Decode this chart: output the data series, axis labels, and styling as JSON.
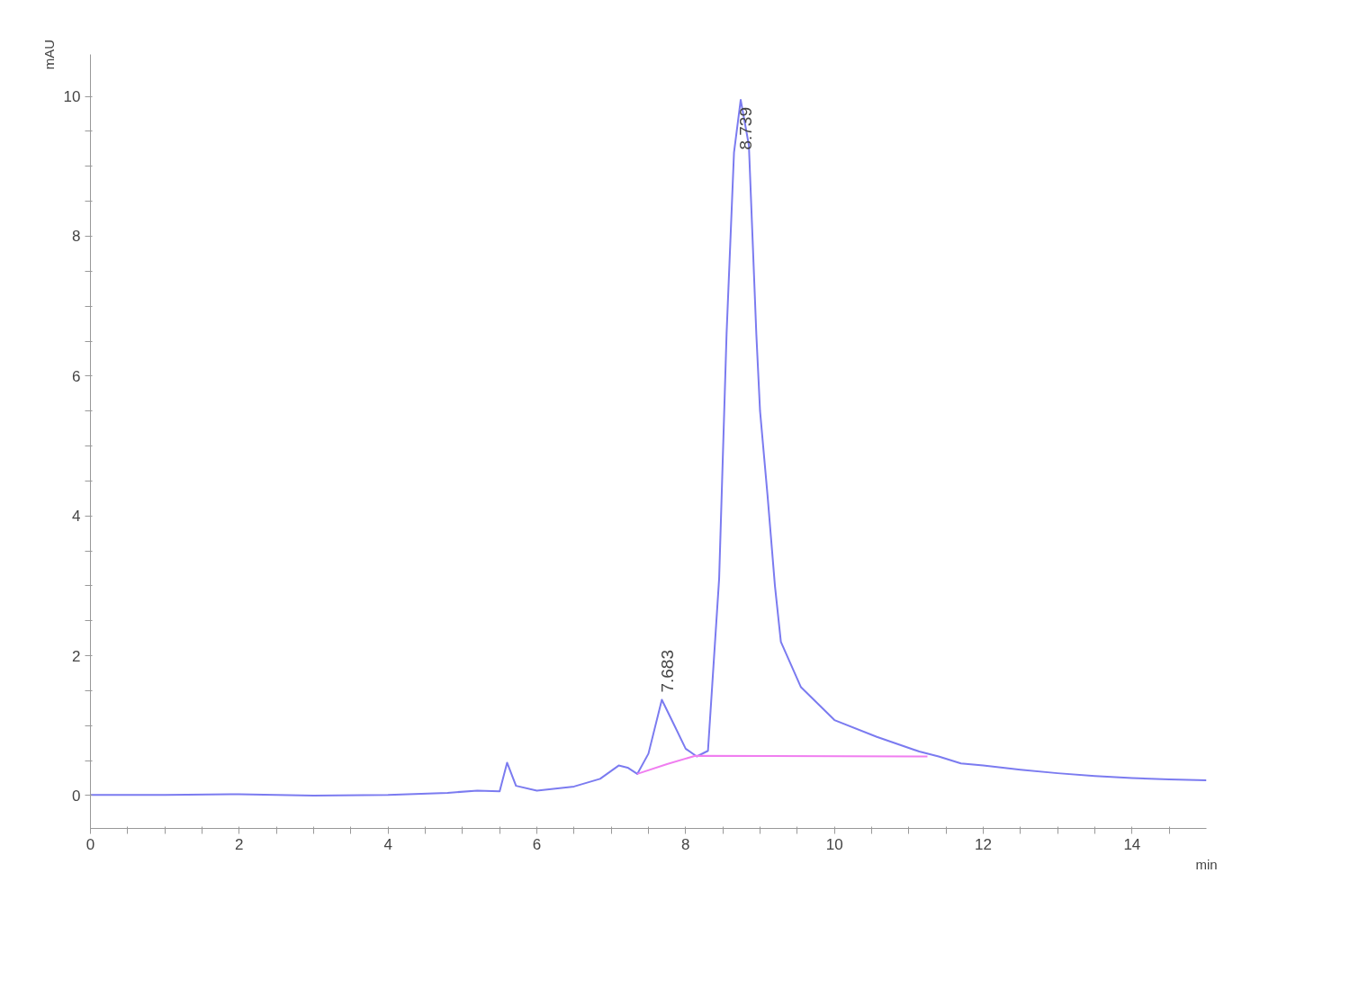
{
  "chart_data": {
    "type": "line",
    "xlabel": "min",
    "ylabel": "mAU",
    "xlim": [
      0,
      15
    ],
    "ylim": [
      -0.47,
      10.6
    ],
    "xticks": [
      0,
      {
        "value": 0.5,
        "label": null
      },
      {
        "value": 1,
        "label": null
      },
      {
        "value": 1.5,
        "label": null
      },
      2,
      {
        "value": 2.5,
        "label": null
      },
      {
        "value": 3,
        "label": null
      },
      {
        "value": 3.5,
        "label": null
      },
      4,
      {
        "value": 4.5,
        "label": null
      },
      {
        "value": 5,
        "label": null
      },
      {
        "value": 5.5,
        "label": null
      },
      6,
      {
        "value": 6.5,
        "label": null
      },
      {
        "value": 7,
        "label": null
      },
      {
        "value": 7.5,
        "label": null
      },
      8,
      {
        "value": 8.5,
        "label": null
      },
      {
        "value": 9,
        "label": null
      },
      {
        "value": 9.5,
        "label": null
      },
      10,
      {
        "value": 10.5,
        "label": null
      },
      {
        "value": 11,
        "label": null
      },
      {
        "value": 11.5,
        "label": null
      },
      12,
      {
        "value": 12.5,
        "label": null
      },
      {
        "value": 13,
        "label": null
      },
      {
        "value": 13.5,
        "label": null
      },
      14,
      {
        "value": 14.5,
        "label": null
      }
    ],
    "yticks": [
      0,
      {
        "value": 0.5,
        "label": null
      },
      {
        "value": 1,
        "label": null
      },
      {
        "value": 1.5,
        "label": null
      },
      2,
      {
        "value": 2.5,
        "label": null
      },
      {
        "value": 3,
        "label": null
      },
      {
        "value": 3.5,
        "label": null
      },
      4,
      {
        "value": 4.5,
        "label": null
      },
      {
        "value": 5,
        "label": null
      },
      {
        "value": 5.5,
        "label": null
      },
      6,
      {
        "value": 6.5,
        "label": null
      },
      {
        "value": 7,
        "label": null
      },
      {
        "value": 7.5,
        "label": null
      },
      8,
      {
        "value": 8.5,
        "label": null
      },
      {
        "value": 9,
        "label": null
      },
      {
        "value": 9.5,
        "label": null
      },
      10
    ],
    "grid": false,
    "marker": "none",
    "line_style": "solid",
    "series": [
      {
        "color": "#7b7bf0",
        "x": [
          0,
          1,
          2,
          3,
          4,
          4.8,
          5.2,
          5.5,
          5.6,
          5.72,
          6.0,
          6.5,
          6.85,
          7.1,
          7.22,
          7.35,
          7.5,
          7.68,
          7.85,
          8.0,
          8.15,
          8.3,
          8.45,
          8.55,
          8.65,
          8.74,
          8.85,
          8.95,
          9.0,
          9.1,
          9.2,
          9.28,
          9.55,
          10.0,
          10.57,
          11.14,
          11.4,
          11.7,
          12.0,
          12.5,
          13.0,
          13.5,
          14.0,
          14.5,
          15.0
        ],
        "values": [
          0.01,
          0.01,
          0.02,
          0.0,
          0.01,
          0.04,
          0.07,
          0.06,
          0.47,
          0.14,
          0.07,
          0.13,
          0.24,
          0.43,
          0.4,
          0.31,
          0.6,
          1.37,
          1.0,
          0.67,
          0.56,
          0.64,
          3.1,
          6.6,
          9.2,
          9.95,
          9.3,
          6.6,
          5.5,
          4.3,
          3.0,
          2.2,
          1.55,
          1.08,
          0.84,
          0.63,
          0.56,
          0.46,
          0.43,
          0.37,
          0.32,
          0.28,
          0.25,
          0.23,
          0.22
        ]
      },
      {
        "color": "#f07ef0",
        "x": [
          7.35,
          7.75,
          8.13,
          11.25
        ],
        "values": [
          0.31,
          0.45,
          0.57,
          0.56
        ]
      }
    ],
    "annotations": [
      {
        "text": "7.683",
        "x": 7.683,
        "y": 1.37
      },
      {
        "text": "8.739",
        "x": 8.739,
        "y": 9.95
      }
    ]
  }
}
